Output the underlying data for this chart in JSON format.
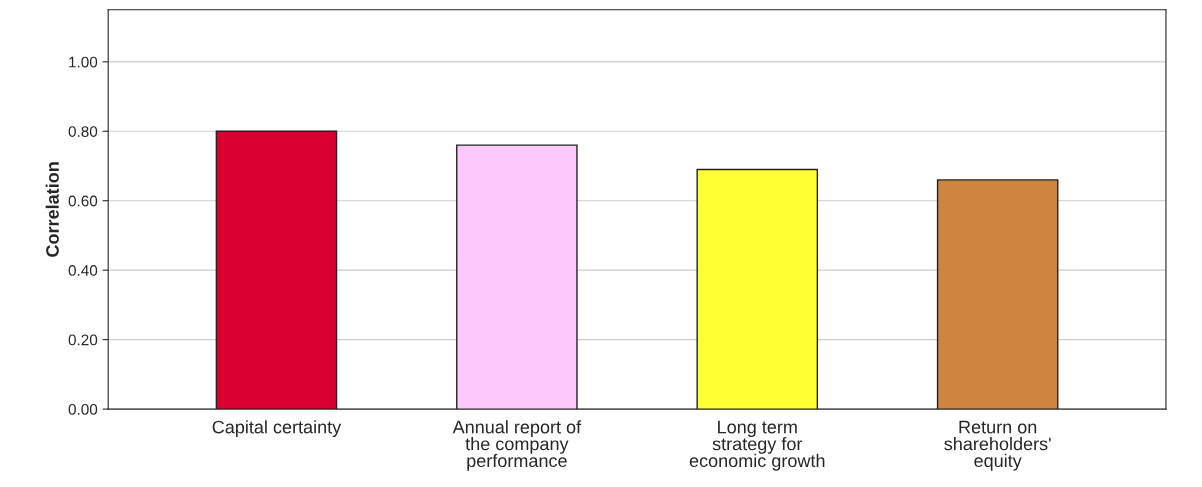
{
  "chart_data": {
    "type": "bar",
    "ylabel": "Correlation",
    "categories": [
      "Capital certainty",
      "Annual report of the company performance",
      "Long term strategy for economic growth",
      "Return on shareholders' equity"
    ],
    "values": [
      0.8,
      0.76,
      0.69,
      0.66
    ],
    "colors": [
      "#d7002f",
      "#fdc9fd",
      "#ffff33",
      "#cd853f"
    ],
    "ylim": [
      0,
      1.15
    ],
    "yticks": [
      {
        "value": 0,
        "label": "0.00"
      },
      {
        "value": 0.2,
        "label": "0.20"
      },
      {
        "value": 0.4,
        "label": "0.40"
      },
      {
        "value": 0.6,
        "label": "0.60"
      },
      {
        "value": 0.8,
        "label": "0.80"
      },
      {
        "value": 1.0,
        "label": "1.00"
      }
    ],
    "grid": "y"
  }
}
